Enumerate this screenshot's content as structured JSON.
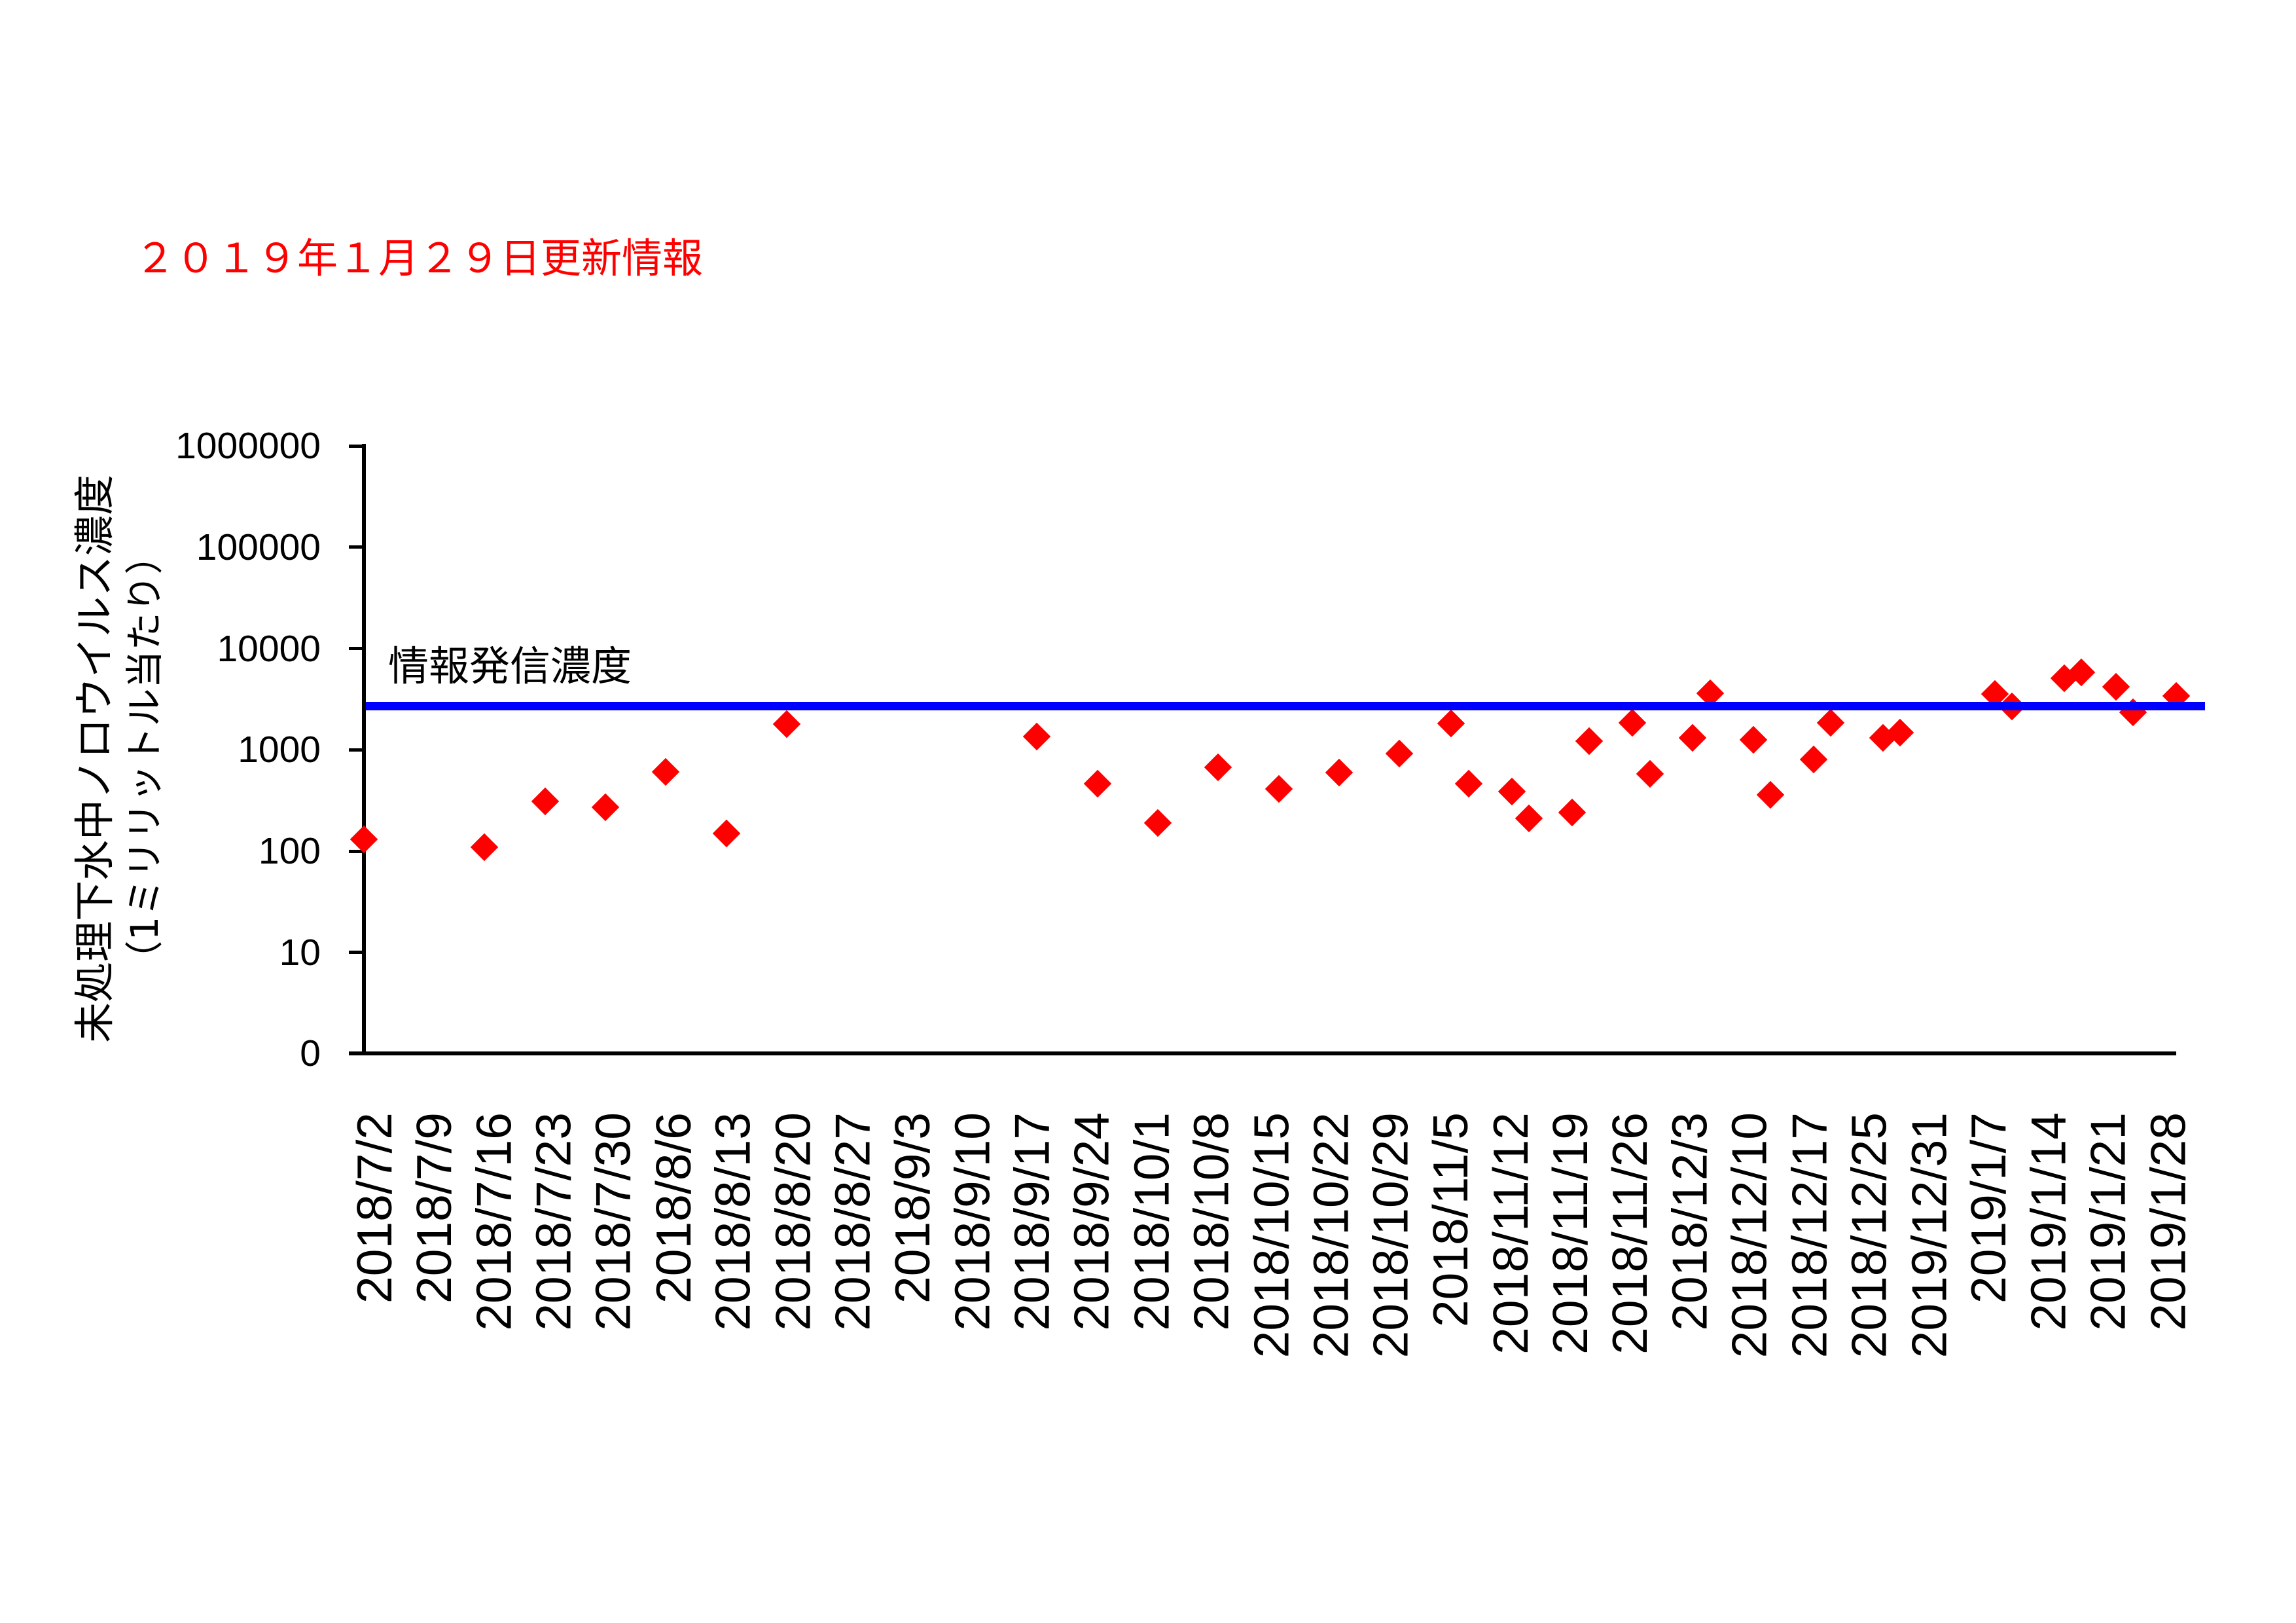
{
  "title": "２０１９年１月２９日更新情報",
  "chart_data": {
    "type": "scatter",
    "title": "２０１９年１月２９日更新情報",
    "xlabel": "",
    "ylabel": [
      "未処理下水中ノロウイルス濃度",
      "（1ミリリットル当たり）"
    ],
    "yscale": "log",
    "ylim": [
      1,
      1000000
    ],
    "ytick_labels": [
      "1000000",
      "100000",
      "10000",
      "1000",
      "100",
      "10",
      "0"
    ],
    "ytick_values": [
      1000000,
      100000,
      10000,
      1000,
      100,
      10,
      1
    ],
    "grid": false,
    "legend": null,
    "x_range": [
      "2018/7/2",
      "2019/1/28"
    ],
    "categories": [
      "2018/7/2",
      "2018/7/9",
      "2018/7/16",
      "2018/7/23",
      "2018/7/30",
      "2018/8/6",
      "2018/8/13",
      "2018/8/20",
      "2018/8/27",
      "2018/9/3",
      "2018/9/10",
      "2018/9/17",
      "2018/9/24",
      "2018/10/1",
      "2018/10/8",
      "2018/10/15",
      "2018/10/22",
      "2018/10/29",
      "2018/11/5",
      "2018/11/12",
      "2018/11/19",
      "2018/11/26",
      "2018/12/3",
      "2018/12/10",
      "2018/12/17",
      "2018/12/25",
      "2019/12/31",
      "2019/1/7",
      "2019/1/14",
      "2019/1/21",
      "2019/1/28"
    ],
    "series": [
      {
        "marker": "diamond",
        "color": "#FF0000",
        "points": [
          {
            "x": "2018/7/2",
            "y": 130
          },
          {
            "x": "2018/7/16",
            "y": 110
          },
          {
            "x": "2018/7/23",
            "y": 310
          },
          {
            "x": "2018/7/30",
            "y": 270
          },
          {
            "x": "2018/8/6",
            "y": 610
          },
          {
            "x": "2018/8/13",
            "y": 150
          },
          {
            "x": "2018/8/20",
            "y": 1800
          },
          {
            "x": "2018/9/18",
            "y": 1350
          },
          {
            "x": "2018/9/25",
            "y": 460
          },
          {
            "x": "2018/10/2",
            "y": 190
          },
          {
            "x": "2018/10/9",
            "y": 670
          },
          {
            "x": "2018/10/16",
            "y": 410
          },
          {
            "x": "2018/10/23",
            "y": 600
          },
          {
            "x": "2018/10/30",
            "y": 920
          },
          {
            "x": "2018/11/5",
            "y": 1820
          },
          {
            "x": "2018/11/7",
            "y": 460
          },
          {
            "x": "2018/11/12",
            "y": 390
          },
          {
            "x": "2018/11/14",
            "y": 210
          },
          {
            "x": "2018/11/19",
            "y": 240
          },
          {
            "x": "2018/11/21",
            "y": 1220
          },
          {
            "x": "2018/11/26",
            "y": 1850
          },
          {
            "x": "2018/11/28",
            "y": 580
          },
          {
            "x": "2018/12/3",
            "y": 1310
          },
          {
            "x": "2018/12/5",
            "y": 3610
          },
          {
            "x": "2018/12/10",
            "y": 1250
          },
          {
            "x": "2018/12/12",
            "y": 360
          },
          {
            "x": "2018/12/17",
            "y": 800
          },
          {
            "x": "2018/12/19",
            "y": 1850
          },
          {
            "x": "2018/12/25",
            "y": 1320
          },
          {
            "x": "2018/12/27",
            "y": 1470
          },
          {
            "x": "2019/1/7",
            "y": 3560
          },
          {
            "x": "2019/1/9",
            "y": 2680
          },
          {
            "x": "2019/1/15",
            "y": 5110
          },
          {
            "x": "2019/1/17",
            "y": 5840
          },
          {
            "x": "2019/1/21",
            "y": 4210
          },
          {
            "x": "2019/1/23",
            "y": 2340
          },
          {
            "x": "2019/1/28",
            "y": 3420
          }
        ]
      }
    ],
    "reference_line": {
      "label": "情報発信濃度",
      "value": 2700,
      "color": "#0000FF"
    }
  }
}
